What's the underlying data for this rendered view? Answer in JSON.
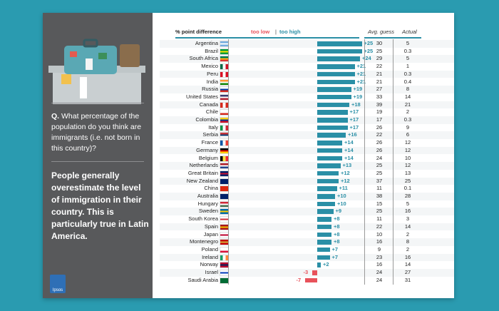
{
  "question": {
    "prefix": "Q.",
    "text": "What percentage of the population do you think are immigrants  (i.e. not born in this country)?"
  },
  "claim": "People generally overestimate the level of immigration in their country. This is particularly true in Latin America.",
  "brand": "Ipsos",
  "colors": {
    "too_high": "#2a8fa6",
    "too_low": "#e8525b",
    "left_panel": "#58595b"
  },
  "chart_data": {
    "type": "bar",
    "orientation": "horizontal",
    "header": {
      "metric": "% point difference",
      "too_low": "too low",
      "separator": "|",
      "too_high": "too high",
      "col_avg": "Avg. guess",
      "col_actual": "Actual"
    },
    "xlim": [
      -8,
      26
    ],
    "rows": [
      {
        "country": "Argentina",
        "diff": 25,
        "label": "+25",
        "avg": "30",
        "actual": "5"
      },
      {
        "country": "Brazil",
        "diff": 25,
        "label": "+25",
        "avg": "25",
        "actual": "0.3"
      },
      {
        "country": "South Africa",
        "diff": 24,
        "label": "+24",
        "avg": "29",
        "actual": "5"
      },
      {
        "country": "Mexico",
        "diff": 21,
        "label": "+21",
        "avg": "22",
        "actual": "1"
      },
      {
        "country": "Peru",
        "diff": 21,
        "label": "+21",
        "avg": "21",
        "actual": "0.3"
      },
      {
        "country": "India",
        "diff": 21,
        "label": "+21",
        "avg": "21",
        "actual": "0.4"
      },
      {
        "country": "Russia",
        "diff": 19,
        "label": "+19",
        "avg": "27",
        "actual": "8"
      },
      {
        "country": "United States",
        "diff": 19,
        "label": "+19",
        "avg": "33",
        "actual": "14"
      },
      {
        "country": "Canada",
        "diff": 18,
        "label": "+18",
        "avg": "39",
        "actual": "21"
      },
      {
        "country": "Chile",
        "diff": 17,
        "label": "+17",
        "avg": "19",
        "actual": "2"
      },
      {
        "country": "Colombia",
        "diff": 17,
        "label": "+17",
        "avg": "17",
        "actual": "0.3"
      },
      {
        "country": "Italy",
        "diff": 17,
        "label": "+17",
        "avg": "26",
        "actual": "9"
      },
      {
        "country": "Serbia",
        "diff": 16,
        "label": "+16",
        "avg": "22",
        "actual": "6"
      },
      {
        "country": "France",
        "diff": 14,
        "label": "+14",
        "avg": "26",
        "actual": "12"
      },
      {
        "country": "Germany",
        "diff": 14,
        "label": "+14",
        "avg": "26",
        "actual": "12"
      },
      {
        "country": "Belgium",
        "diff": 14,
        "label": "+14",
        "avg": "24",
        "actual": "10"
      },
      {
        "country": "Netherlands",
        "diff": 13,
        "label": "+13",
        "avg": "25",
        "actual": "12"
      },
      {
        "country": "Great Britain",
        "diff": 12,
        "label": "+12",
        "avg": "25",
        "actual": "13"
      },
      {
        "country": "New Zealand",
        "diff": 12,
        "label": "+12",
        "avg": "37",
        "actual": "25"
      },
      {
        "country": "China",
        "diff": 11,
        "label": "+11",
        "avg": "11",
        "actual": "0.1"
      },
      {
        "country": "Australia",
        "diff": 10,
        "label": "+10",
        "avg": "38",
        "actual": "28"
      },
      {
        "country": "Hungary",
        "diff": 10,
        "label": "+10",
        "avg": "15",
        "actual": "5"
      },
      {
        "country": "Sweden",
        "diff": 9,
        "label": "+9",
        "avg": "25",
        "actual": "16"
      },
      {
        "country": "South Korea",
        "diff": 8,
        "label": "+8",
        "avg": "11",
        "actual": "3"
      },
      {
        "country": "Spain",
        "diff": 8,
        "label": "+8",
        "avg": "22",
        "actual": "14"
      },
      {
        "country": "Japan",
        "diff": 8,
        "label": "+8",
        "avg": "10",
        "actual": "2"
      },
      {
        "country": "Montenegro",
        "diff": 8,
        "label": "+8",
        "avg": "16",
        "actual": "8"
      },
      {
        "country": "Poland",
        "diff": 7,
        "label": "+7",
        "avg": "9",
        "actual": "2"
      },
      {
        "country": "Ireland",
        "diff": 7,
        "label": "+7",
        "avg": "23",
        "actual": "16"
      },
      {
        "country": "Norway",
        "diff": 2,
        "label": "+2",
        "avg": "16",
        "actual": "14"
      },
      {
        "country": "Israel",
        "diff": -3,
        "label": "-3",
        "avg": "24",
        "actual": "27"
      },
      {
        "country": "Saudi Arabia",
        "diff": -7,
        "label": "-7",
        "avg": "24",
        "actual": "31"
      }
    ]
  },
  "flags": {
    "Argentina": [
      "#74acdf",
      "#ffffff",
      "#74acdf",
      "h"
    ],
    "Brazil": [
      "#009b3a",
      "#fedf00",
      "#009b3a",
      "h"
    ],
    "South Africa": [
      "#007a4d",
      "#ffb612",
      "#de3831",
      "h"
    ],
    "Mexico": [
      "#006847",
      "#ffffff",
      "#ce1126",
      "v"
    ],
    "Peru": [
      "#d91023",
      "#ffffff",
      "#d91023",
      "v"
    ],
    "India": [
      "#ff9933",
      "#ffffff",
      "#138808",
      "h"
    ],
    "Russia": [
      "#ffffff",
      "#0039a6",
      "#d52b1e",
      "h"
    ],
    "United States": [
      "#3c3b6e",
      "#ffffff",
      "#b22234",
      "h"
    ],
    "Canada": [
      "#d52b1e",
      "#ffffff",
      "#d52b1e",
      "v"
    ],
    "Chile": [
      "#ffffff",
      "#ffffff",
      "#d52b1e",
      "h"
    ],
    "Colombia": [
      "#fcd116",
      "#003893",
      "#ce1126",
      "h"
    ],
    "Italy": [
      "#009246",
      "#ffffff",
      "#ce2b37",
      "v"
    ],
    "Serbia": [
      "#c6363c",
      "#0c4076",
      "#ffffff",
      "h"
    ],
    "France": [
      "#0055a4",
      "#ffffff",
      "#ef4135",
      "v"
    ],
    "Germany": [
      "#000000",
      "#dd0000",
      "#ffce00",
      "h"
    ],
    "Belgium": [
      "#000000",
      "#fae042",
      "#ed2939",
      "v"
    ],
    "Netherlands": [
      "#ae1c28",
      "#ffffff",
      "#21468b",
      "h"
    ],
    "Great Britain": [
      "#012169",
      "#c8102e",
      "#012169",
      "h"
    ],
    "New Zealand": [
      "#012169",
      "#012169",
      "#012169",
      "h"
    ],
    "China": [
      "#de2910",
      "#de2910",
      "#de2910",
      "h"
    ],
    "Australia": [
      "#012169",
      "#012169",
      "#012169",
      "h"
    ],
    "Hungary": [
      "#ce2939",
      "#ffffff",
      "#477050",
      "h"
    ],
    "Sweden": [
      "#006aa7",
      "#fecc00",
      "#006aa7",
      "h"
    ],
    "South Korea": [
      "#ffffff",
      "#cd2e3a",
      "#ffffff",
      "h"
    ],
    "Spain": [
      "#aa151b",
      "#f1bf00",
      "#aa151b",
      "h"
    ],
    "Japan": [
      "#ffffff",
      "#bc002d",
      "#ffffff",
      "h"
    ],
    "Montenegro": [
      "#c40308",
      "#d4af37",
      "#c40308",
      "h"
    ],
    "Poland": [
      "#ffffff",
      "#ffffff",
      "#dc143c",
      "h"
    ],
    "Ireland": [
      "#169b62",
      "#ffffff",
      "#ff883e",
      "v"
    ],
    "Norway": [
      "#ba0c2f",
      "#00205b",
      "#ba0c2f",
      "h"
    ],
    "Israel": [
      "#ffffff",
      "#0038b8",
      "#ffffff",
      "h"
    ],
    "Saudi Arabia": [
      "#006c35",
      "#006c35",
      "#006c35",
      "h"
    ]
  }
}
